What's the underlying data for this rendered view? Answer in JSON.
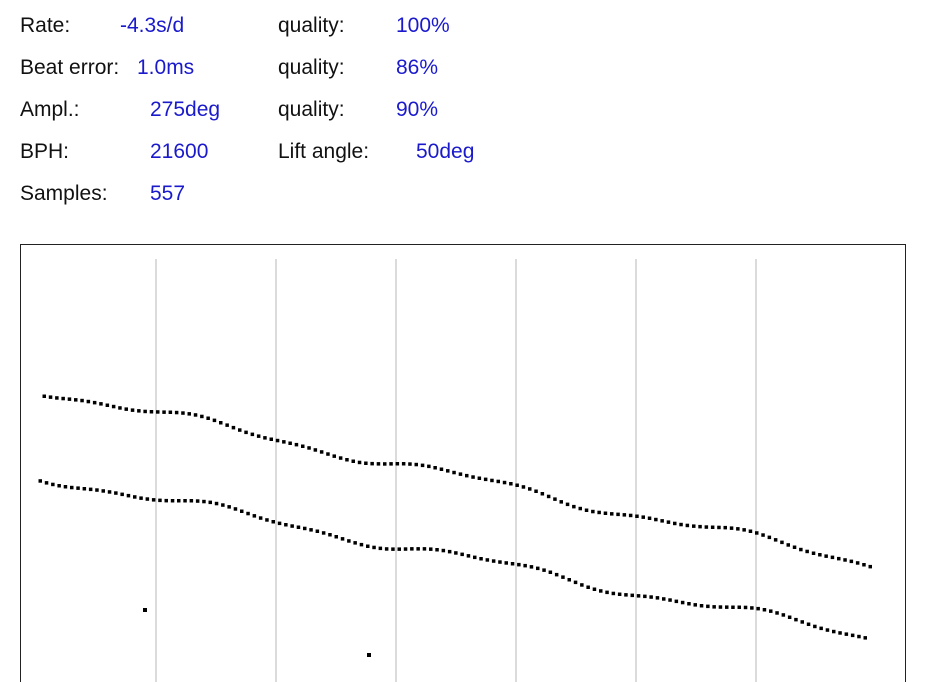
{
  "readings": {
    "rate": {
      "label": "Rate:",
      "value": "-4.3s/d"
    },
    "rate_quality": {
      "label": "quality:",
      "value": "100%"
    },
    "beat_error": {
      "label": "Beat error:",
      "value": "1.0ms"
    },
    "beat_quality": {
      "label": "quality:",
      "value": "86%"
    },
    "amplitude": {
      "label": "Ampl.:",
      "value": "275deg"
    },
    "amplitude_quality": {
      "label": "quality:",
      "value": "90%"
    },
    "bph": {
      "label": "BPH:",
      "value": "21600"
    },
    "lift_angle": {
      "label": "Lift angle:",
      "value": "50deg"
    },
    "samples": {
      "label": "Samples:",
      "value": "557"
    }
  }
}
